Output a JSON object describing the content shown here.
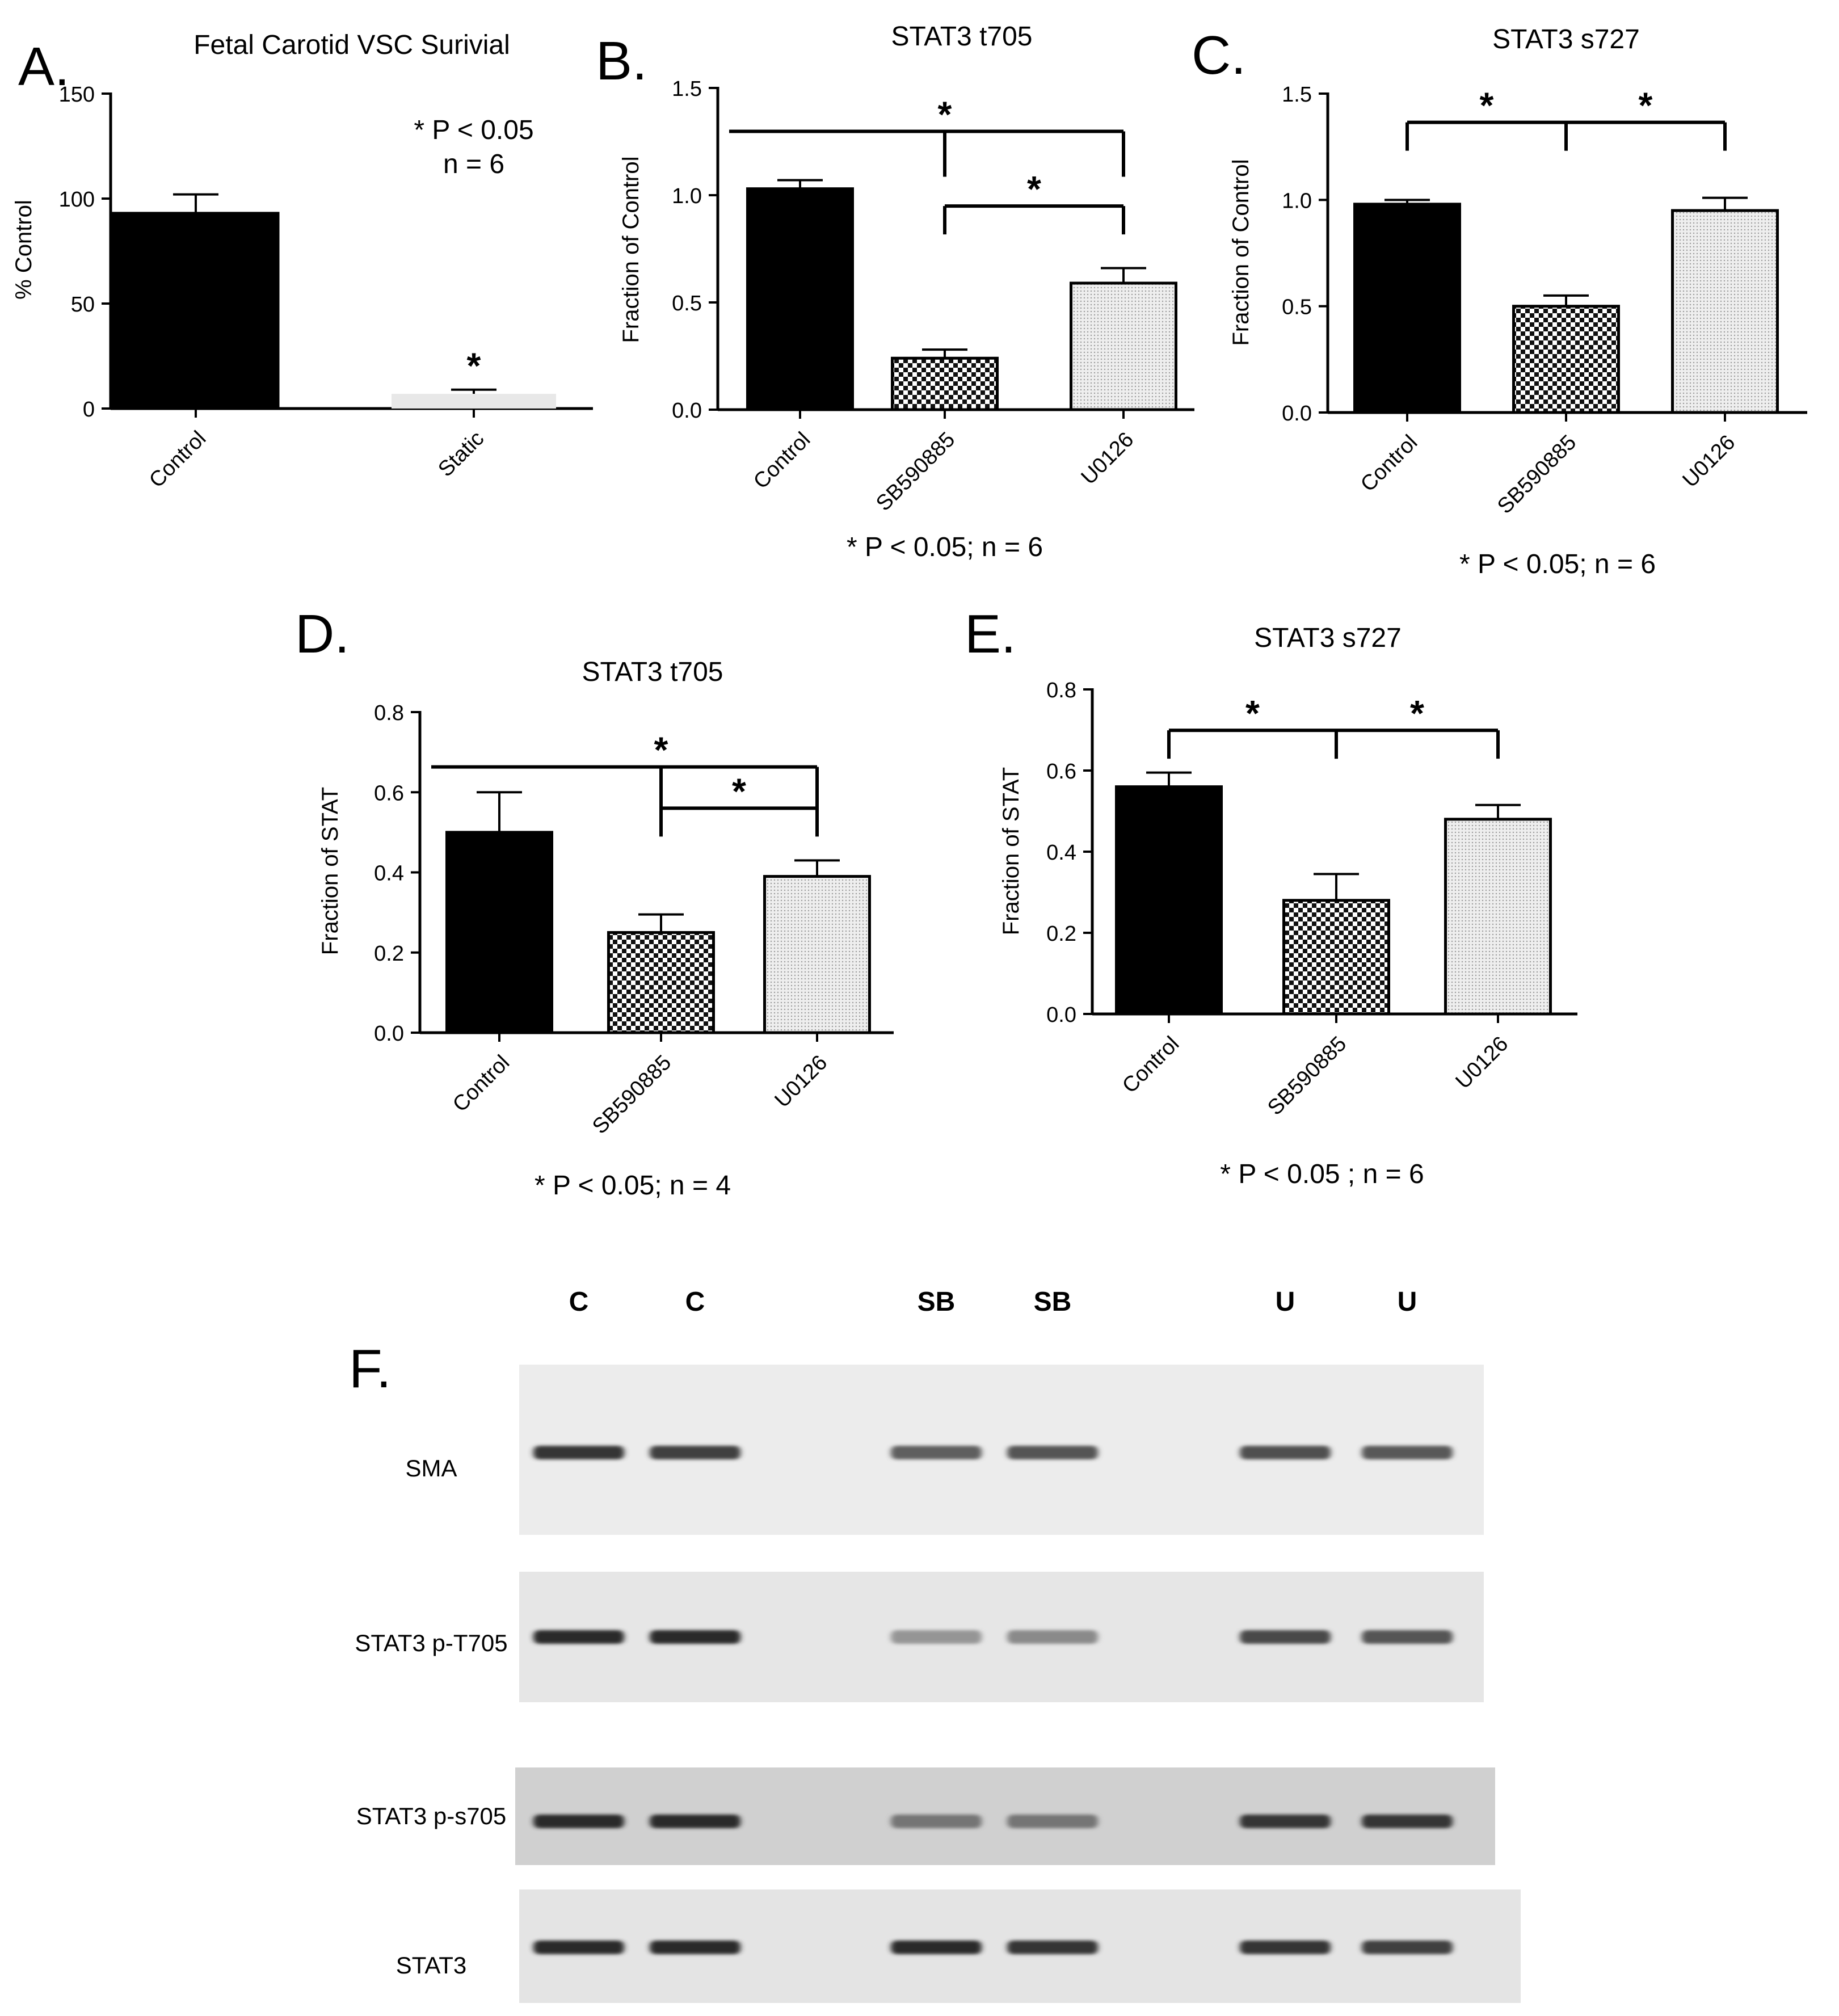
{
  "panels": [
    {
      "label": "A.",
      "title": "Fetal Carotid VSC Surivial",
      "ylabel": "% Control",
      "ylim": [
        0,
        150
      ],
      "yticks": [
        "0",
        "50",
        "100",
        "150"
      ],
      "note": "* P < 0.05\nn = 6",
      "footnote": ""
    },
    {
      "label": "B.",
      "title": "STAT3 t705",
      "ylabel": "Fraction of Control",
      "ylim": [
        0,
        1.5
      ],
      "yticks": [
        "0.0",
        "0.5",
        "1.0",
        "1.5"
      ],
      "note": "",
      "footnote": "* P < 0.05; n = 6"
    },
    {
      "label": "C.",
      "title": "STAT3 s727",
      "ylabel": "Fraction of Control",
      "ylim": [
        0,
        1.5
      ],
      "yticks": [
        "0.0",
        "0.5",
        "1.0",
        "1.5"
      ],
      "note": "",
      "footnote": "* P < 0.05; n = 6"
    },
    {
      "label": "D.",
      "title": "STAT3 t705",
      "ylabel": "Fraction of STAT",
      "ylim": [
        0,
        0.8
      ],
      "yticks": [
        "0.0",
        "0.2",
        "0.4",
        "0.6",
        "0.8"
      ],
      "note": "",
      "footnote": "* P < 0.05; n = 4"
    },
    {
      "label": "E.",
      "title": "STAT3 s727",
      "ylabel": "Fraction of STAT",
      "ylim": [
        0,
        0.8
      ],
      "yticks": [
        "0.0",
        "0.2",
        "0.4",
        "0.6",
        "0.8"
      ],
      "note": "",
      "footnote": "* P < 0.05 ; n = 6"
    }
  ],
  "chart_data": [
    {
      "type": "bar",
      "title": "Fetal Carotid VSC Surivial",
      "ylabel": "% Control",
      "ylim": [
        0,
        150
      ],
      "categories": [
        "Control",
        "Static"
      ],
      "values": [
        93,
        7
      ],
      "errors": [
        9,
        2
      ],
      "fills": [
        "solid",
        "light"
      ],
      "significance": [
        {
          "marker": "*",
          "over": 1
        }
      ]
    },
    {
      "type": "bar",
      "title": "STAT3 t705",
      "ylabel": "Fraction of Control",
      "ylim": [
        0,
        1.5
      ],
      "categories": [
        "Control",
        "SB590885",
        "U0126"
      ],
      "values": [
        1.03,
        0.24,
        0.59
      ],
      "errors": [
        0.04,
        0.04,
        0.07
      ],
      "fills": [
        "solid",
        "checker",
        "dots"
      ],
      "significance": [
        {
          "marker": "*",
          "from": 0,
          "to": 2,
          "mid": 1,
          "style": "long"
        },
        {
          "marker": "*",
          "from": 1,
          "to": 2,
          "style": "bracket"
        }
      ]
    },
    {
      "type": "bar",
      "title": "STAT3 s727",
      "ylabel": "Fraction of Control",
      "ylim": [
        0,
        1.5
      ],
      "categories": [
        "Control",
        "SB590885",
        "U0126"
      ],
      "values": [
        0.98,
        0.5,
        0.95
      ],
      "errors": [
        0.02,
        0.05,
        0.06
      ],
      "fills": [
        "solid",
        "checker",
        "dots"
      ],
      "significance": [
        {
          "marker": "*",
          "from": 0,
          "to": 1,
          "style": "bracket"
        },
        {
          "marker": "*",
          "from": 1,
          "to": 2,
          "style": "bracket"
        }
      ]
    },
    {
      "type": "bar",
      "title": "STAT3 t705",
      "ylabel": "Fraction of STAT",
      "ylim": [
        0,
        0.8
      ],
      "categories": [
        "Control",
        "SB590885",
        "U0126"
      ],
      "values": [
        0.5,
        0.25,
        0.39
      ],
      "errors": [
        0.1,
        0.045,
        0.04
      ],
      "fills": [
        "solid",
        "checker",
        "dots"
      ],
      "significance": [
        {
          "marker": "*",
          "from": 0,
          "to": 2,
          "mid": 1,
          "style": "long"
        },
        {
          "marker": "*",
          "from": 1,
          "to": 2,
          "style": "bracket"
        }
      ]
    },
    {
      "type": "bar",
      "title": "STAT3 s727",
      "ylabel": "Fraction of STAT",
      "ylim": [
        0,
        0.8
      ],
      "categories": [
        "Control",
        "SB590885",
        "U0126"
      ],
      "values": [
        0.56,
        0.28,
        0.48
      ],
      "errors": [
        0.035,
        0.065,
        0.035
      ],
      "fills": [
        "solid",
        "checker",
        "dots"
      ],
      "significance": [
        {
          "marker": "*",
          "from": 0,
          "to": 1,
          "style": "bracket"
        },
        {
          "marker": "*",
          "from": 1,
          "to": 2,
          "style": "bracket"
        }
      ]
    }
  ],
  "blot": {
    "label": "F.",
    "lanes": [
      "C",
      "C",
      "SB",
      "SB",
      "U",
      "U"
    ],
    "rows": [
      {
        "name": "SMA",
        "intensities": [
          0.85,
          0.8,
          0.65,
          0.7,
          0.72,
          0.68
        ]
      },
      {
        "name": "STAT3 p-T705",
        "intensities": [
          0.9,
          0.9,
          0.4,
          0.45,
          0.75,
          0.7
        ]
      },
      {
        "name": "STAT3 p-s705",
        "intensities": [
          0.9,
          0.9,
          0.55,
          0.55,
          0.85,
          0.85
        ]
      },
      {
        "name": "STAT3",
        "intensities": [
          0.9,
          0.9,
          0.9,
          0.85,
          0.85,
          0.8
        ]
      }
    ]
  }
}
